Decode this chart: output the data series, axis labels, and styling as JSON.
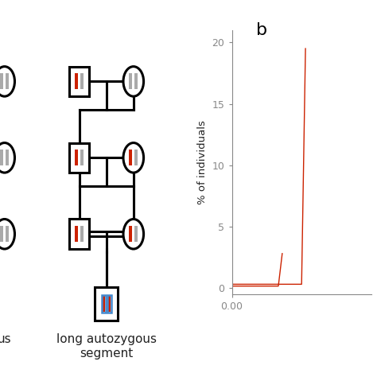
{
  "panel_b_label": "b",
  "ylabel": "% of individuals",
  "xlabel": "0.00",
  "yticks": [
    0,
    5,
    10,
    15,
    20
  ],
  "ylim": [
    -0.5,
    21
  ],
  "xlim": [
    0.0,
    0.018
  ],
  "bg_color": "#ffffff",
  "axis_color": "#888888",
  "text_color": "#222222",
  "bottom_label": "long autozygous\nsegment",
  "left_label": "us",
  "red_color": "#cc2200",
  "gray_color": "#aaaaaa",
  "blue_color": "#4488cc",
  "line_lw": 1.0,
  "pedigree_lw": 2.2,
  "shape_size": 0.9,
  "circle_r": 0.45
}
